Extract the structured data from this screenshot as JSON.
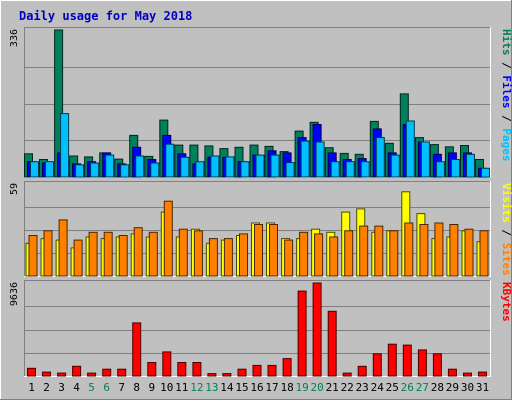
{
  "chart_data": {
    "type": "bar",
    "title": "Daily usage for May 2018",
    "categories": [
      "1",
      "2",
      "3",
      "4",
      "5",
      "6",
      "7",
      "8",
      "9",
      "10",
      "11",
      "12",
      "13",
      "14",
      "15",
      "16",
      "17",
      "18",
      "19",
      "20",
      "21",
      "22",
      "23",
      "24",
      "25",
      "26",
      "27",
      "28",
      "29",
      "30",
      "31"
    ],
    "weekend_days": [
      "5",
      "6",
      "12",
      "13",
      "19",
      "20",
      "26",
      "27"
    ],
    "panels": [
      {
        "name": "hits-files-pages",
        "scale_label": "336",
        "ylim": [
          0,
          336
        ],
        "grid": true,
        "legend": [
          "Pages",
          "Files",
          "Hits"
        ],
        "series": [
          {
            "name": "Hits",
            "color": "#00805c",
            "values": [
              53,
              40,
              336,
              48,
              46,
              55,
              41,
              95,
              47,
              130,
              73,
              73,
              71,
              65,
              68,
              73,
              70,
              58,
              105,
              125,
              67,
              54,
              52,
              127,
              77,
              190,
              90,
              74,
              69,
              72,
              40
            ]
          },
          {
            "name": "Files",
            "color": "#0000ff",
            "values": [
              35,
              32,
              55,
              30,
              35,
              55,
              30,
              68,
              40,
              95,
              53,
              30,
              45,
              45,
              35,
              50,
              60,
              55,
              90,
              120,
              55,
              40,
              42,
              110,
              55,
              120,
              80,
              52,
              55,
              55,
              20
            ]
          },
          {
            "name": "Pages",
            "color": "#00c0ff",
            "values": [
              35,
              35,
              145,
              28,
              32,
              50,
              28,
              48,
              32,
              75,
              45,
              35,
              48,
              46,
              35,
              50,
              50,
              33,
              82,
              80,
              35,
              35,
              35,
              90,
              50,
              128,
              80,
              35,
              40,
              52,
              20
            ]
          }
        ]
      },
      {
        "name": "visits-sites",
        "scale_label": "59",
        "ylim": [
          0,
          59
        ],
        "grid": true,
        "legend": [
          "Sites",
          "Visits"
        ],
        "series": [
          {
            "name": "Visits",
            "color": "#ffff00",
            "values": [
              21,
              24,
              23,
              18,
              25,
              24,
              25,
              27,
              25,
              41,
              25,
              30,
              21,
              23,
              26,
              34,
              34,
              24,
              24,
              30,
              28,
              41,
              43,
              28,
              29,
              54,
              40,
              24,
              25,
              29,
              22
            ]
          },
          {
            "name": "Sites",
            "color": "#ff8000",
            "values": [
              26,
              29,
              36,
              23,
              28,
              28,
              26,
              31,
              28,
              48,
              30,
              29,
              24,
              24,
              27,
              33,
              33,
              23,
              28,
              27,
              25,
              29,
              32,
              32,
              29,
              34,
              33,
              34,
              33,
              30,
              29
            ]
          }
        ]
      },
      {
        "name": "kbytes",
        "scale_label": "9636",
        "ylim": [
          0,
          9636
        ],
        "grid": true,
        "legend": [
          "KBytes"
        ],
        "series": [
          {
            "name": "KBytes",
            "color": "#ff0000",
            "values": [
              800,
              400,
              300,
              1000,
              300,
              700,
              700,
              5500,
              1400,
              2500,
              1400,
              1400,
              250,
              250,
              700,
              1100,
              1100,
              1800,
              8800,
              9636,
              6700,
              300,
              1000,
              2300,
              3300,
              3200,
              2700,
              2300,
              700,
              300,
              400
            ]
          }
        ]
      }
    ]
  }
}
